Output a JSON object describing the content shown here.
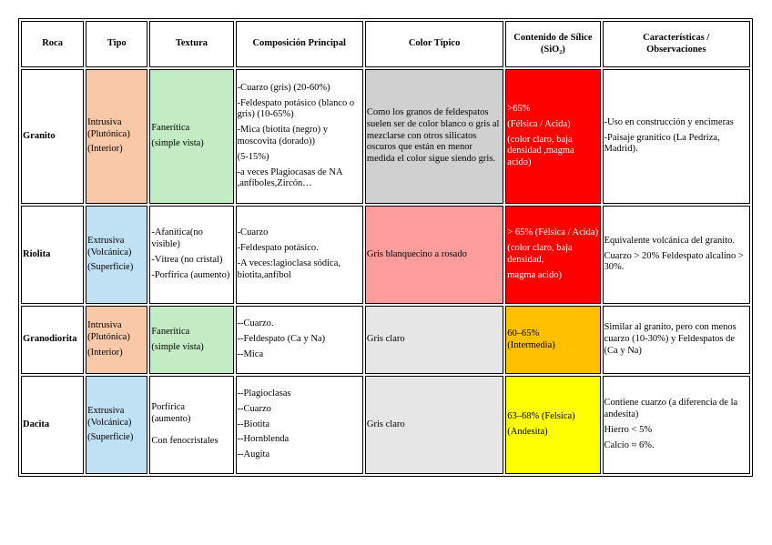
{
  "headers": {
    "roca": "Roca",
    "tipo": "Tipo",
    "textura": "Textura",
    "composicion": "Composición Principal",
    "color": "Color Típico",
    "silice": [
      "Contenido de Sílice",
      "(SiO₂)"
    ],
    "caracteristicas": [
      "Características /",
      "Observaciones"
    ]
  },
  "colors": {
    "intrusiva": "#f8c8a8",
    "extrusiva": "#c0e0f4",
    "faneritica": "#c4ecc4",
    "granito_color": "#d0d0d0",
    "riolita_color": "#ff9d9d",
    "gris_claro": "#e6e6e6",
    "felsica_red": "#ff0000",
    "intermedia_orange": "#ffc000",
    "dacita_yellow": "#ffff00"
  },
  "rows": [
    {
      "roca": "Granito",
      "tipo": [
        "Intrusiva",
        "(Plutónica)",
        "(Interior)"
      ],
      "textura": [
        "Fanerítica",
        "(simple vista)"
      ],
      "composicion": [
        "-Cuarzo (gris)  (20-60%)",
        "-Feldespato potásico (blanco o gris) (10-65%)",
        "-Mica (biotita (negro) y moscovita (dorado))",
        "(5-15%)",
        "-a veces Plagiocasas de NA ,anfíboles,Zircón…"
      ],
      "color": "Como los granos de feldespatos suelen ser de color blanco o gris al mezclarse con otros silicatos oscuros que están en menor medida el color sigue siendo gris.",
      "silice": [
        ">65%",
        "(Félsica / Acida)",
        "(color claro, baja densidad ,magma acido)"
      ],
      "caracteristicas": [
        "-Uso en construcción y encimeras",
        "-Paisaje granítico (La Pedriza, Madrid)."
      ]
    },
    {
      "roca": "Riolita",
      "tipo": [
        "Extrusiva",
        "(Volcánica)",
        "(Superficie)"
      ],
      "textura": [
        "-Afanítica(no visible)",
        " -Vítrea (no cristal)",
        "-Porfírica (aumento)"
      ],
      "composicion": [
        "-Cuarzo",
        "-Feldespato potásico.",
        "-A veces:lagioclasa sódica, biotita,anfíbol"
      ],
      "color": "Gris blanquecino a rosado",
      "silice": [
        "> 65% (Félsica / Acida)",
        "(color claro, baja densidad,",
        "magma acido)"
      ],
      "caracteristicas": [
        "Equivalente volcánica del granito.",
        "Cuarzo > 20% Feldespato alcalino > 30%."
      ]
    },
    {
      "roca": "Granodiorita",
      "tipo": [
        "Intrusiva",
        "(Plutónica)",
        "(Interior)"
      ],
      "textura": [
        "Fanerítica",
        "(simple vista)"
      ],
      "composicion": [
        "--Cuarzo.",
        "--Feldespato (Ca y Na)",
        "--Mica"
      ],
      "color": "Gris claro",
      "silice": [
        "60–65%",
        "(Intermedia)"
      ],
      "caracteristicas": [
        "Similar al granito, pero con menos cuarzo (10-30%) y Feldespatos de (Ca y Na)"
      ]
    },
    {
      "roca": "Dacita",
      "tipo": [
        "Extrusiva",
        "(Volcánica)",
        "(Superficie)"
      ],
      "textura": [
        "Porfírica",
        "(aumento)",
        "Con fenocristales"
      ],
      "composicion": [
        "--Plagioclasas",
        "--Cuarzo",
        "--Biotita",
        "--Hornblenda",
        "--Augita"
      ],
      "color": "Gris claro",
      "silice": [
        "63–68% (Felsica)",
        "(Andesita)"
      ],
      "caracteristicas": [
        "Contiene cuarzo (a diferencia de la andesita)",
        "Hierro < 5%",
        "Calcio ≈ 6%."
      ]
    }
  ]
}
